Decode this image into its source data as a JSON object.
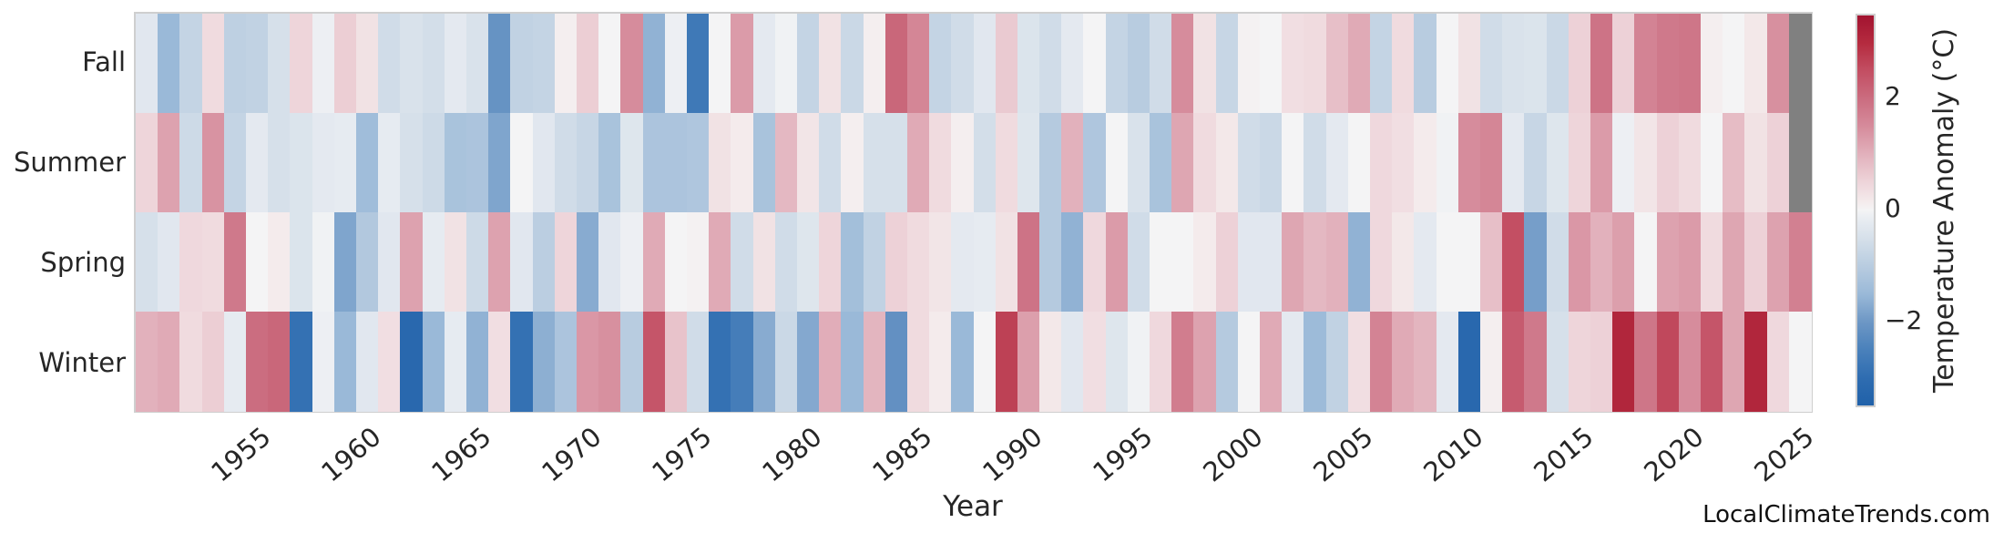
{
  "watermark": "LocalClimateTrends.com",
  "colors": {
    "background": "#ffffff",
    "axes_edge": "#cfcfcf",
    "text": "#262626",
    "missing_cell": "#808080"
  },
  "chart_data": {
    "type": "heatmap",
    "title": "",
    "xlabel": "Year",
    "legend_position": "right-colorbar",
    "grid": false,
    "years": [
      1950,
      1951,
      1952,
      1953,
      1954,
      1955,
      1956,
      1957,
      1958,
      1959,
      1960,
      1961,
      1962,
      1963,
      1964,
      1965,
      1966,
      1967,
      1968,
      1969,
      1970,
      1971,
      1972,
      1973,
      1974,
      1975,
      1976,
      1977,
      1978,
      1979,
      1980,
      1981,
      1982,
      1983,
      1984,
      1985,
      1986,
      1987,
      1988,
      1989,
      1990,
      1991,
      1992,
      1993,
      1994,
      1995,
      1996,
      1997,
      1998,
      1999,
      2000,
      2001,
      2002,
      2003,
      2004,
      2005,
      2006,
      2007,
      2008,
      2009,
      2010,
      2011,
      2012,
      2013,
      2014,
      2015,
      2016,
      2017,
      2018,
      2019,
      2020,
      2021,
      2022,
      2023,
      2024,
      2025
    ],
    "x_ticks": [
      1955,
      1960,
      1965,
      1970,
      1975,
      1980,
      1985,
      1990,
      1995,
      2000,
      2005,
      2010,
      2015,
      2020,
      2025
    ],
    "series": [
      {
        "name": "Fall",
        "values": [
          -0.3,
          -1.5,
          -0.8,
          0.4,
          -0.9,
          -0.85,
          -0.5,
          0.5,
          -0.1,
          0.6,
          0.3,
          -0.6,
          -0.45,
          -0.55,
          -0.25,
          -0.45,
          -2.1,
          -0.85,
          -0.8,
          0.1,
          0.6,
          0,
          1.5,
          -1.6,
          -0.1,
          -2.7,
          0,
          1.3,
          -0.25,
          -0.05,
          -0.8,
          0.3,
          -0.7,
          0.1,
          2.1,
          1.6,
          -0.8,
          -0.6,
          -0.3,
          0.65,
          -0.4,
          -0.6,
          -0.25,
          0,
          -0.8,
          -1,
          -0.6,
          1.5,
          0.3,
          -0.75,
          0.05,
          0,
          0.35,
          0.4,
          0.8,
          1.1,
          -0.8,
          0.4,
          -1,
          0,
          0.3,
          -0.6,
          -0.45,
          -0.4,
          -0.7,
          0.55,
          1.9,
          0.55,
          1.65,
          1.8,
          1.85,
          0.1,
          0,
          0.2,
          1.45,
          null
        ]
      },
      {
        "name": "Summer",
        "values": [
          0.5,
          1.2,
          -0.65,
          1.4,
          -0.8,
          -0.25,
          -0.5,
          -0.4,
          -0.25,
          -0.2,
          -1.4,
          -0.2,
          -0.5,
          -0.65,
          -1.25,
          -1.2,
          -1.8,
          0,
          -0.3,
          -0.6,
          -0.75,
          -1.25,
          -0.35,
          -1.2,
          -1.2,
          -1.15,
          0.3,
          0.15,
          -1.25,
          0.9,
          0.25,
          -0.6,
          0.1,
          -0.5,
          -0.5,
          1.1,
          0.4,
          0.1,
          -0.55,
          0.4,
          -0.35,
          -1.05,
          1,
          -1.15,
          0,
          -0.45,
          -1.25,
          1.15,
          0.4,
          0.2,
          -0.6,
          -0.7,
          0,
          -0.6,
          -0.25,
          0,
          0.45,
          0.35,
          0.15,
          -0.05,
          1.5,
          1.6,
          -0.25,
          -0.75,
          -0.35,
          0.5,
          1.3,
          -0.1,
          0.25,
          0.55,
          0.4,
          0,
          0.85,
          0.3,
          0.55,
          null
        ]
      },
      {
        "name": "Spring",
        "values": [
          -0.5,
          -0.3,
          0.45,
          0.4,
          1.8,
          0,
          0.15,
          -0.4,
          -0.05,
          -1.8,
          -1.1,
          -0.3,
          1.2,
          -0.2,
          0.3,
          -0.65,
          1.2,
          -0.3,
          -0.95,
          0.5,
          -1.7,
          -0.3,
          -0.1,
          1.1,
          0,
          0.05,
          1.1,
          -0.6,
          0.3,
          -0.6,
          -0.35,
          0.5,
          -1.35,
          -0.85,
          0.55,
          0.4,
          0.25,
          -0.25,
          -0.2,
          0.3,
          1.9,
          -1.05,
          -1.6,
          0.45,
          1.3,
          -0.6,
          0,
          0,
          0.15,
          0.55,
          -0.3,
          -0.3,
          1.15,
          0.9,
          1,
          -1.6,
          0.45,
          0.2,
          -0.25,
          0,
          0,
          0.8,
          2.5,
          -1.9,
          -0.6,
          1.35,
          1,
          1.25,
          0,
          1.2,
          1.3,
          0.4,
          1.15,
          0.55,
          1.2,
          1.7
        ]
      },
      {
        "name": "Winter",
        "values": [
          1,
          1.1,
          0.4,
          0.6,
          -0.2,
          2,
          2.1,
          -2.9,
          -0.1,
          -1.5,
          -0.3,
          0.35,
          -3.2,
          -1.5,
          -0.2,
          -1.6,
          0.35,
          -2.9,
          -1.65,
          -1.2,
          1.35,
          1.45,
          -1,
          2.4,
          0.75,
          -0.6,
          -2.9,
          -2.6,
          -1.7,
          -0.7,
          -1.75,
          1.05,
          -1.5,
          0.95,
          -2.15,
          0.4,
          0.15,
          -1.5,
          0,
          2.7,
          1.25,
          0.2,
          -0.3,
          0.35,
          -0.35,
          -0.05,
          0.45,
          1.75,
          1.2,
          -1.05,
          0,
          1.1,
          -0.25,
          -1.45,
          -0.85,
          0.35,
          1.65,
          1.1,
          0.95,
          -0.25,
          -3.2,
          0.1,
          2.3,
          1.8,
          -0.5,
          0.5,
          0.55,
          3.1,
          1.85,
          2.6,
          1.5,
          2.4,
          1.15,
          3.1,
          0.45,
          0
        ]
      }
    ],
    "colorbar": {
      "label": "Temperature Anomaly (°C)",
      "vmin": -3.5,
      "vmax": 3.5,
      "ticks": [
        {
          "value": 2,
          "label": "2"
        },
        {
          "value": 0,
          "label": "0"
        },
        {
          "value": -2,
          "label": "−2"
        }
      ]
    },
    "colormap_stops": [
      {
        "v": -3.5,
        "c": "#2061a9"
      },
      {
        "v": -3.0,
        "c": "#2f6db1"
      },
      {
        "v": -2.5,
        "c": "#4a81bb"
      },
      {
        "v": -2.0,
        "c": "#6d97c5"
      },
      {
        "v": -1.5,
        "c": "#9ab9d8"
      },
      {
        "v": -1.0,
        "c": "#b8cce0"
      },
      {
        "v": -0.5,
        "c": "#d6e0ea"
      },
      {
        "v": -0.15,
        "c": "#e9edf2"
      },
      {
        "v": 0.0,
        "c": "#f4f4f5"
      },
      {
        "v": 0.15,
        "c": "#f4ebec"
      },
      {
        "v": 0.5,
        "c": "#eed5da"
      },
      {
        "v": 1.0,
        "c": "#e2b1bc"
      },
      {
        "v": 1.5,
        "c": "#d68c9c"
      },
      {
        "v": 2.0,
        "c": "#cb6d80"
      },
      {
        "v": 2.5,
        "c": "#c34f63"
      },
      {
        "v": 3.0,
        "c": "#b52b3f"
      },
      {
        "v": 3.5,
        "c": "#a21330"
      }
    ]
  }
}
